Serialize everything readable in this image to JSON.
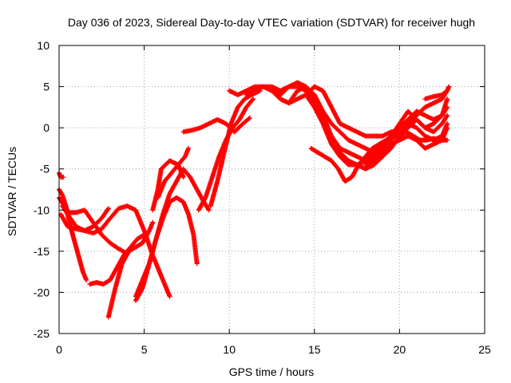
{
  "chart_data": {
    "type": "scatter",
    "title": "Day 036 of 2023, Sidereal Day-to-day VTEC variation (SDTVAR) for receiver hugh",
    "xlabel": "GPS time / hours",
    "ylabel": "SDTVAR / TECUs",
    "xlim": [
      0,
      25
    ],
    "ylim": [
      -25,
      10
    ],
    "x_ticks": [
      0,
      5,
      10,
      15,
      20,
      25
    ],
    "y_ticks": [
      -25,
      -20,
      -15,
      -10,
      -5,
      0,
      5,
      10
    ],
    "grid": true,
    "legend": "none",
    "marker": "plus",
    "color": "#ff0000",
    "series": [
      {
        "x": [
          0.0,
          0.1,
          0.25
        ],
        "y": [
          -5.5,
          -6.0,
          -6.0
        ]
      },
      {
        "x": [
          0.0,
          0.2,
          0.4,
          0.6,
          0.8,
          1.0,
          1.2,
          1.4,
          1.6
        ],
        "y": [
          -7.5,
          -8.2,
          -9.5,
          -11.5,
          -13.0,
          -14.5,
          -16.0,
          -17.5,
          -18.5
        ]
      },
      {
        "x": [
          0.0,
          0.3,
          0.6,
          1.0,
          1.5,
          2.0,
          2.5,
          3.0,
          3.5,
          4.0
        ],
        "y": [
          -8.5,
          -9.5,
          -10.3,
          -10.3,
          -10.0,
          -11.5,
          -13.0,
          -14.0,
          -14.7,
          -15.3
        ]
      },
      {
        "x": [
          0.1,
          0.5,
          1.0,
          1.5,
          2.0,
          2.5,
          3.0,
          3.5,
          4.0,
          4.5,
          5.0,
          5.5,
          6.0,
          6.5
        ],
        "y": [
          -10.5,
          -12.0,
          -12.3,
          -12.5,
          -12.8,
          -12.3,
          -11.0,
          -9.8,
          -9.5,
          -10.0,
          -12.5,
          -15.5,
          -18.0,
          -20.5
        ]
      },
      {
        "x": [
          0.2,
          0.5,
          1.0,
          1.5,
          2.0,
          2.5,
          2.9
        ],
        "y": [
          -9.5,
          -10.5,
          -12.0,
          -12.5,
          -12.0,
          -11.0,
          -9.8
        ]
      },
      {
        "x": [
          1.8,
          2.2,
          2.6,
          3.0,
          3.4,
          3.8,
          4.2,
          4.6,
          5.0
        ],
        "y": [
          -19.0,
          -18.8,
          -19.0,
          -18.5,
          -17.0,
          -15.5,
          -14.5,
          -13.5,
          -13.0
        ]
      },
      {
        "x": [
          2.9,
          3.3,
          3.7,
          4.1,
          4.5,
          4.9,
          5.3,
          5.5
        ],
        "y": [
          -23.0,
          -19.5,
          -16.5,
          -15.0,
          -14.5,
          -14.0,
          -12.5,
          -11.5
        ]
      },
      {
        "x": [
          4.5,
          4.9,
          5.3,
          5.7,
          6.1,
          6.5,
          6.9,
          7.3,
          7.6,
          7.9,
          8.1
        ],
        "y": [
          -21.0,
          -19.5,
          -16.5,
          -13.5,
          -11.0,
          -9.0,
          -8.5,
          -9.0,
          -10.5,
          -13.0,
          -16.5
        ]
      },
      {
        "x": [
          4.5,
          4.9,
          5.3,
          5.7,
          6.1,
          6.5,
          6.9,
          7.3,
          7.7,
          8.1,
          8.5,
          8.8
        ],
        "y": [
          -20.5,
          -18.5,
          -16.5,
          -13.5,
          -10.5,
          -8.0,
          -6.5,
          -5.0,
          -6.0,
          -7.5,
          -9.0,
          -10.0
        ]
      },
      {
        "x": [
          5.5,
          5.8,
          6.0,
          6.5,
          7.0,
          7.3
        ],
        "y": [
          -10.0,
          -7.5,
          -5.0,
          -4.0,
          -4.5,
          -6.0
        ]
      },
      {
        "x": [
          5.8,
          6.2,
          6.6,
          7.0,
          7.4,
          7.6
        ],
        "y": [
          -8.5,
          -6.5,
          -5.5,
          -4.5,
          -3.5,
          -2.5
        ]
      },
      {
        "x": [
          7.3,
          7.8,
          8.3,
          8.8,
          9.3,
          9.8,
          10.3,
          10.8,
          11.2
        ],
        "y": [
          -0.5,
          -0.3,
          0.0,
          0.5,
          1.0,
          0.5,
          -0.5,
          0.5,
          1.2
        ]
      },
      {
        "x": [
          8.2,
          8.6,
          9.0,
          9.4,
          9.8,
          10.2,
          10.6,
          11.0,
          11.4
        ],
        "y": [
          -10.0,
          -8.5,
          -6.0,
          -3.5,
          -1.5,
          0.0,
          1.0,
          2.5,
          3.5
        ]
      },
      {
        "x": [
          8.9,
          9.3,
          9.7,
          10.1,
          10.5,
          10.9,
          11.3,
          11.8
        ],
        "y": [
          -9.5,
          -6.5,
          -3.0,
          0.5,
          2.5,
          3.5,
          4.0,
          4.5
        ]
      },
      {
        "x": [
          10.0,
          10.5,
          11.0,
          11.5,
          12.0,
          12.5,
          13.0,
          13.5,
          14.0,
          14.5,
          15.0,
          15.5,
          16.0,
          16.5,
          17.0,
          17.5,
          18.0,
          18.5,
          19.0,
          19.5,
          20.0,
          20.5,
          21.0,
          21.5,
          22.0,
          22.5,
          22.8
        ],
        "y": [
          4.5,
          4.0,
          4.5,
          5.0,
          5.0,
          5.0,
          4.5,
          5.0,
          5.0,
          4.5,
          3.0,
          1.0,
          -1.0,
          -2.5,
          -3.0,
          -3.5,
          -4.0,
          -3.5,
          -2.5,
          -1.5,
          -0.5,
          0.5,
          1.5,
          2.5,
          3.0,
          3.5,
          4.5
        ]
      },
      {
        "x": [
          11.0,
          11.5,
          12.0,
          12.5,
          13.0,
          13.5,
          14.0,
          14.5,
          15.0,
          15.5,
          16.0,
          16.5,
          17.0,
          17.5,
          18.0,
          18.5,
          19.0,
          19.5,
          20.0,
          20.5,
          21.0,
          21.5,
          22.0,
          22.5,
          22.8
        ],
        "y": [
          4.0,
          4.5,
          5.0,
          4.5,
          3.5,
          3.0,
          3.5,
          4.0,
          2.5,
          0.5,
          -2.0,
          -3.5,
          -4.5,
          -4.5,
          -4.0,
          -3.0,
          -2.0,
          -1.0,
          0.0,
          1.0,
          2.0,
          1.5,
          1.0,
          1.5,
          2.5
        ]
      },
      {
        "x": [
          12.0,
          12.5,
          13.0,
          13.5,
          14.0,
          14.5,
          15.0,
          15.5,
          16.0,
          16.5,
          17.0,
          17.5,
          18.0,
          18.5,
          19.0,
          19.5,
          20.0,
          20.5,
          21.0,
          21.5,
          22.0,
          22.5,
          22.8
        ],
        "y": [
          5.0,
          4.5,
          4.0,
          5.0,
          5.5,
          5.0,
          3.5,
          1.5,
          -1.0,
          -3.0,
          -4.0,
          -4.5,
          -5.0,
          -4.5,
          -3.5,
          -2.5,
          -1.0,
          0.5,
          0.0,
          -1.0,
          -1.5,
          -1.0,
          0.5
        ]
      },
      {
        "x": [
          13.0,
          13.5,
          14.0,
          14.5,
          15.0,
          15.5,
          16.0,
          16.5,
          17.0,
          17.5,
          18.0,
          18.5,
          19.0,
          19.5,
          20.0,
          20.5,
          21.0,
          21.5,
          22.0,
          22.5,
          22.8
        ],
        "y": [
          3.5,
          3.0,
          4.5,
          5.0,
          4.0,
          2.0,
          0.5,
          -0.5,
          -1.5,
          -2.0,
          -2.5,
          -3.0,
          -2.0,
          -1.0,
          0.5,
          2.0,
          1.0,
          0.0,
          -0.5,
          0.5,
          1.5
        ]
      },
      {
        "x": [
          14.5,
          15.0,
          15.5,
          16.0,
          16.5,
          17.0,
          17.5,
          18.0,
          18.5,
          19.0,
          19.5,
          20.0,
          20.5,
          21.0,
          21.5,
          22.0,
          22.5,
          22.8
        ],
        "y": [
          4.0,
          5.0,
          4.5,
          2.5,
          0.5,
          0.0,
          -0.5,
          -1.0,
          -1.0,
          -1.0,
          -0.5,
          -0.5,
          0.0,
          1.0,
          0.0,
          0.5,
          1.5,
          3.5
        ]
      },
      {
        "x": [
          14.8,
          15.2,
          15.6,
          16.0,
          16.4,
          16.8,
          17.2,
          17.6,
          18.0,
          18.4,
          18.8,
          19.2,
          19.6,
          20.0,
          20.4,
          20.8,
          21.2,
          21.6,
          22.0,
          22.4,
          22.8
        ],
        "y": [
          -2.5,
          -3.0,
          -3.5,
          -4.0,
          -5.0,
          -6.5,
          -6.0,
          -4.5,
          -3.5,
          -2.5,
          -2.0,
          -1.5,
          -1.0,
          -1.0,
          -0.5,
          -1.0,
          -1.5,
          -1.5,
          -1.3,
          -1.5,
          -1.5
        ]
      },
      {
        "x": [
          18.0,
          18.5,
          19.0,
          19.5,
          20.0,
          20.5,
          21.0,
          21.5,
          22.0,
          22.5,
          22.8
        ],
        "y": [
          -4.5,
          -4.0,
          -3.0,
          -2.0,
          -1.5,
          -1.0,
          -1.5,
          -2.5,
          -2.0,
          -1.5,
          0.0
        ]
      },
      {
        "x": [
          21.5,
          22.0,
          22.5,
          22.8,
          22.9
        ],
        "y": [
          3.5,
          3.8,
          4.0,
          4.5,
          5.0
        ]
      }
    ]
  }
}
